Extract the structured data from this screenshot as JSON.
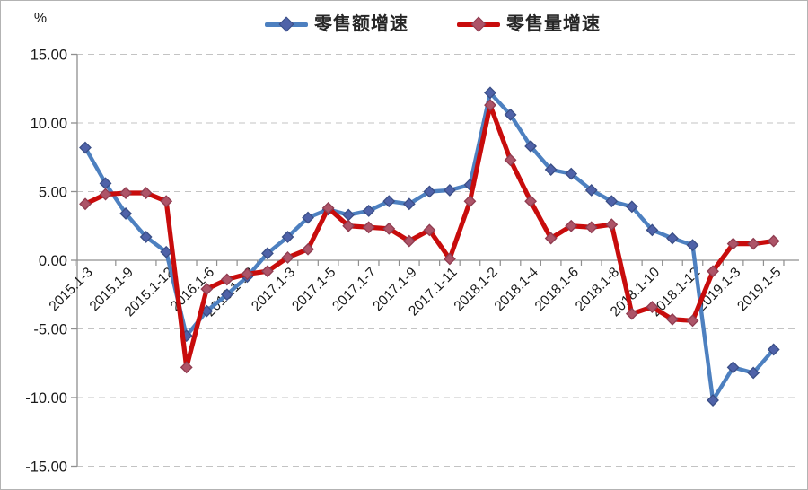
{
  "chart_data": {
    "type": "line",
    "title": "",
    "unit_label": "%",
    "ylabel": "",
    "xlabel": "",
    "ylim": [
      -15,
      15
    ],
    "ytick_interval": 5,
    "ytick_labels": [
      "15.00",
      "10.00",
      "5.00",
      "0.00",
      "-5.00",
      "-10.00",
      "-15.00"
    ],
    "x_tick_labels": [
      "2015.1-3",
      "2015.1-9",
      "2015.1-12",
      "2016.1-6",
      "2016.1-12",
      "2017.1-3",
      "2017.1-5",
      "2017.1-7",
      "2017.1-9",
      "2017.1-11",
      "2018.1-2",
      "2018.1-4",
      "2018.1-6",
      "2018.1-8",
      "2018.1-10",
      "2018.1-12",
      "2019.1-3",
      "2019.1-5"
    ],
    "label_interval": 2,
    "n_points": 35,
    "grid": "horizontal-dashed",
    "legend_position": "top-center",
    "colors": {
      "axis": "#8f8f8f",
      "gridline": "#c3c3c3",
      "tick_label": "#1a1a1a",
      "chart_border": "#b3b3b3"
    },
    "series": [
      {
        "name": "零售额增速",
        "line_color": "#4d80c0",
        "marker_fill": "#4f62a8",
        "marker_stroke": "#3a4e86",
        "values": [
          8.2,
          5.6,
          3.4,
          1.7,
          0.6,
          -5.5,
          -3.7,
          -2.5,
          -1.2,
          0.5,
          1.7,
          3.1,
          3.7,
          3.3,
          3.6,
          4.3,
          4.1,
          5.0,
          5.1,
          5.5,
          12.2,
          10.6,
          8.3,
          6.6,
          6.3,
          5.1,
          4.3,
          3.9,
          2.2,
          1.6,
          1.1,
          -10.2,
          -7.8,
          -8.2,
          -6.5
        ]
      },
      {
        "name": "零售量增速",
        "line_color": "#c80c0c",
        "marker_fill": "#ad5468",
        "marker_stroke": "#8f3c50",
        "values": [
          4.1,
          4.8,
          4.9,
          4.9,
          4.3,
          -7.8,
          -2.1,
          -1.4,
          -1.0,
          -0.8,
          0.2,
          0.8,
          3.8,
          2.5,
          2.4,
          2.3,
          1.4,
          2.2,
          0.1,
          4.3,
          11.3,
          7.3,
          4.3,
          1.6,
          2.5,
          2.4,
          2.6,
          -3.9,
          -3.4,
          -4.3,
          -4.4,
          -0.8,
          1.2,
          1.2,
          1.4
        ]
      }
    ]
  }
}
